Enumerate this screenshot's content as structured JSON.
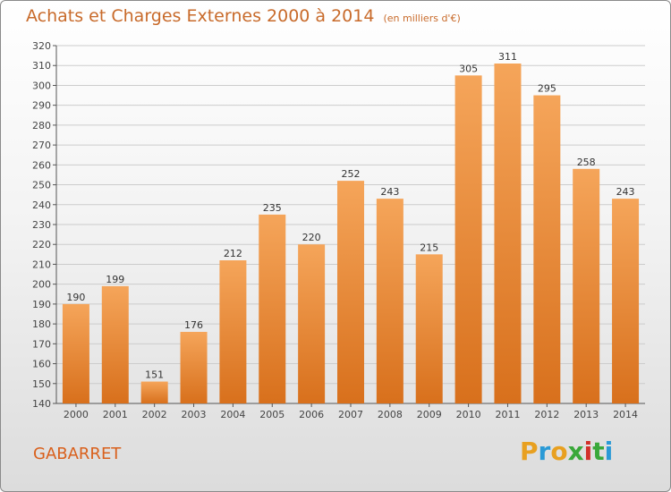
{
  "title": "Achats et Charges Externes 2000 à 2014",
  "subtitle": "(en milliers d'€)",
  "city": "GABARRET",
  "logo": {
    "letters": [
      "P",
      "r",
      "o",
      "x",
      "i",
      "t",
      "i"
    ],
    "colors": [
      "#e8a020",
      "#2a9ad6",
      "#e8a020",
      "#3aa83a",
      "#d2302a",
      "#3aa83a",
      "#2a9ad6"
    ]
  },
  "colors": {
    "bar_top": "#f5a55a",
    "bar_bottom": "#d8701c",
    "grid": "#cccccc"
  },
  "chart_data": {
    "type": "bar",
    "categories": [
      "2000",
      "2001",
      "2002",
      "2003",
      "2004",
      "2005",
      "2006",
      "2007",
      "2008",
      "2009",
      "2010",
      "2011",
      "2012",
      "2013",
      "2014"
    ],
    "values": [
      190,
      199,
      151,
      176,
      212,
      235,
      220,
      252,
      243,
      215,
      305,
      311,
      295,
      258,
      243
    ],
    "ylim": [
      140,
      320
    ],
    "yticks": [
      140,
      150,
      160,
      170,
      180,
      190,
      200,
      210,
      220,
      230,
      240,
      250,
      260,
      270,
      280,
      290,
      300,
      310,
      320
    ],
    "grid": true
  }
}
